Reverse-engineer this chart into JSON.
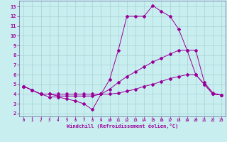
{
  "xlabel": "Windchill (Refroidissement éolien,°C)",
  "bg_color": "#c8eef0",
  "grid_color": "#a0cccc",
  "line_color": "#990099",
  "spine_color": "#666699",
  "x_ticks": [
    0,
    1,
    2,
    3,
    4,
    5,
    6,
    7,
    8,
    9,
    10,
    11,
    12,
    13,
    14,
    15,
    16,
    17,
    18,
    19,
    20,
    21,
    22,
    23
  ],
  "y_ticks": [
    2,
    3,
    4,
    5,
    6,
    7,
    8,
    9,
    10,
    11,
    12,
    13
  ],
  "ylim": [
    1.7,
    13.6
  ],
  "xlim": [
    -0.5,
    23.5
  ],
  "line1_x": [
    0,
    1,
    2,
    3,
    4,
    5,
    6,
    7,
    8,
    9,
    10,
    11,
    12,
    13,
    14,
    15,
    16,
    17,
    18,
    19,
    20,
    21,
    22,
    23
  ],
  "line1_y": [
    4.8,
    4.4,
    4.0,
    3.7,
    3.7,
    3.5,
    3.3,
    3.0,
    2.4,
    4.0,
    5.5,
    8.5,
    12.0,
    12.0,
    12.0,
    13.1,
    12.5,
    12.0,
    10.7,
    8.5,
    6.0,
    5.0,
    4.0,
    3.9
  ],
  "line2_x": [
    0,
    1,
    2,
    3,
    4,
    5,
    6,
    7,
    8,
    9,
    10,
    11,
    12,
    13,
    14,
    15,
    16,
    17,
    18,
    19,
    20,
    21,
    22,
    23
  ],
  "line2_y": [
    4.8,
    4.4,
    4.0,
    4.0,
    3.8,
    3.8,
    3.8,
    3.8,
    3.8,
    4.0,
    4.5,
    5.2,
    5.8,
    6.3,
    6.8,
    7.3,
    7.7,
    8.1,
    8.5,
    8.5,
    8.5,
    5.2,
    4.1,
    3.9
  ],
  "line3_x": [
    0,
    1,
    2,
    3,
    4,
    5,
    6,
    7,
    8,
    9,
    10,
    11,
    12,
    13,
    14,
    15,
    16,
    17,
    18,
    19,
    20,
    21,
    22,
    23
  ],
  "line3_y": [
    4.8,
    4.4,
    4.0,
    4.0,
    4.0,
    4.0,
    4.0,
    4.0,
    4.0,
    4.0,
    4.0,
    4.1,
    4.3,
    4.5,
    4.8,
    5.0,
    5.3,
    5.6,
    5.8,
    6.0,
    6.0,
    5.0,
    4.0,
    3.9
  ]
}
